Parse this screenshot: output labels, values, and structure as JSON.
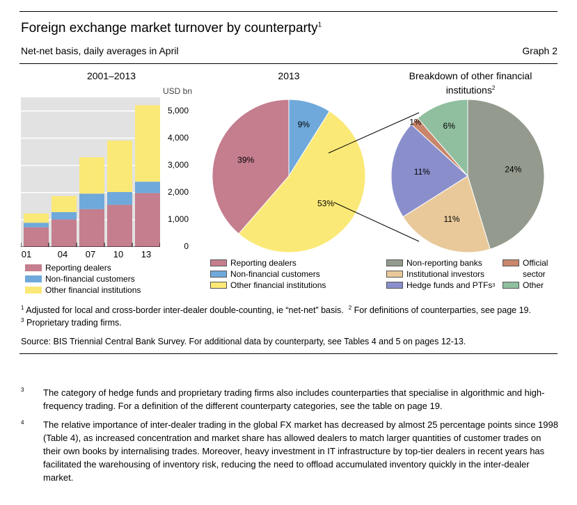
{
  "header": {
    "title": "Foreign exchange market turnover by counterparty",
    "title_ref": "1",
    "subtitle": "Net-net basis, daily averages in April",
    "graph_label": "Graph 2"
  },
  "colors": {
    "reporting_dealers": "#c47e8e",
    "non_financial": "#6fa9db",
    "other_financial": "#fbe977",
    "non_reporting_banks": "#949a8d",
    "institutional_investors": "#e9c99a",
    "hedge_funds": "#8a8fcc",
    "official_sector": "#c9866a",
    "other": "#8fbf9f",
    "panel_bg": "#e2e2e2"
  },
  "chart_data": [
    {
      "type": "bar",
      "stacked": true,
      "title": "2001–2013",
      "unit": "USD bn",
      "categories": [
        "01",
        "04",
        "07",
        "10",
        "13"
      ],
      "series": [
        {
          "name": "Reporting dealers",
          "values": [
            720,
            1010,
            1390,
            1550,
            1980
          ]
        },
        {
          "name": "Non-financial customers",
          "values": [
            170,
            270,
            570,
            470,
            420
          ]
        },
        {
          "name": "Other financial institutions",
          "values": [
            340,
            590,
            1340,
            1890,
            2810
          ]
        }
      ],
      "ylim": [
        0,
        5500
      ],
      "yticks": [
        "0",
        "1,000",
        "2,000",
        "3,000",
        "4,000",
        "5,000"
      ],
      "grid": true,
      "legend": "below"
    },
    {
      "type": "pie",
      "title": "2013",
      "slices": [
        {
          "name": "Non-financial customers",
          "value": 9,
          "label": "9%"
        },
        {
          "name": "Other financial institutions",
          "value": 53,
          "label": "53%"
        },
        {
          "name": "Reporting dealers",
          "value": 39,
          "label": "39%"
        }
      ],
      "legend": "below"
    },
    {
      "type": "pie",
      "title": "Breakdown of other financial institutions",
      "title_ref": "2",
      "slices": [
        {
          "name": "Non-reporting banks",
          "value": 24,
          "label": "24%"
        },
        {
          "name": "Institutional investors",
          "value": 11,
          "label": "11%"
        },
        {
          "name": "Hedge funds and PTFs",
          "value": 11,
          "label": "11%"
        },
        {
          "name": "Official sector",
          "value": 1,
          "label": "1%"
        },
        {
          "name": "Other",
          "value": 6,
          "label": "6%"
        }
      ],
      "legend": "below"
    }
  ],
  "legends": {
    "bar": [
      "Reporting dealers",
      "Non-financial customers",
      "Other financial institutions"
    ],
    "pie1": [
      "Reporting dealers",
      "Non-financial customers",
      "Other financial institutions"
    ],
    "pie2_col1": [
      "Non-reporting banks",
      "Institutional investors",
      "Hedge funds and PTFs"
    ],
    "pie2_ref": "3",
    "pie2_col2_a": "Official",
    "pie2_col2_b": "sector",
    "pie2_col2_c": "Other"
  },
  "footnotes": {
    "n1": "1",
    "t1": "Adjusted for local and cross-border inter-dealer double-counting, ie “net-net” basis.",
    "n2": "2",
    "t2": "For definitions of counterparties, see page 19.",
    "n3": "3",
    "t3": "Proprietary trading firms.",
    "source": "Source: BIS Triennial Central Bank Survey. For additional data by counterparty, see Tables 4 and 5 on pages 12-13."
  },
  "notes": [
    {
      "num": "3",
      "text": "The category of hedge funds and proprietary trading firms also includes counterparties that specialise in algorithmic and high-frequency trading. For a definition of the different counterparty categories, see the table on page 19."
    },
    {
      "num": "4",
      "text": "The relative importance of inter-dealer trading in the global FX market has decreased by almost 25 percentage points since 1998 (Table 4), as increased concentration and market share has allowed dealers to match larger quantities of customer trades on their own books by internalising trades. Moreover, heavy investment in IT infrastructure by top-tier dealers in recent years has facilitated the warehousing of inventory risk, reducing the need to offload accumulated inventory quickly in the inter-dealer market."
    }
  ]
}
